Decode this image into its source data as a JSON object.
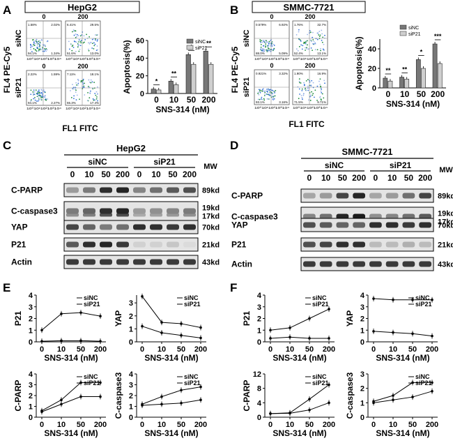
{
  "panels": {
    "A": {
      "letter": "A",
      "cell_line": "HepG2",
      "y_axis": "FL4 PE-Cy5",
      "x_axis": "FL1 FITC",
      "row_labels": [
        "siNC",
        "siP21"
      ],
      "col_labels": [
        "0",
        "200"
      ],
      "plot_ticks": "10⁰10¹10²10³10⁴",
      "quadrants": [
        [
          "1.58%",
          "2.02%",
          "94.1%",
          "1.34%"
        ],
        [
          "6.41%",
          "29.5%",
          "51.6%",
          "13.0%"
        ],
        [
          "2.22%",
          "1.59%",
          "94.1%",
          "2.27%"
        ],
        [
          "7.11%",
          "18.1%",
          "55.3%",
          "17.4%"
        ]
      ]
    },
    "B": {
      "letter": "B",
      "cell_line": "SMMC-7721",
      "y_axis": "FL4 PE-Cy5",
      "x_axis": "FL1 FITC",
      "row_labels": [
        "siNC",
        "siP21"
      ],
      "col_labels": [
        "0",
        "200"
      ],
      "plot_ticks": "10⁰10¹10²10³10⁴",
      "quadrants": [
        [
          "0.579%",
          "6.92%",
          "88.0%",
          "5.09%"
        ],
        [
          "1.76%",
          "32.7%",
          "52.4%",
          "13.1%"
        ],
        [
          "0.921%",
          "3.32%",
          "93.1%",
          "3.16%"
        ],
        [
          "1.90%",
          "16.9%",
          "71.5%",
          "9.71%"
        ]
      ]
    },
    "C": {
      "letter": "C",
      "cell_line": "HepG2",
      "group1": "siNC",
      "group2": "siP21",
      "doses": [
        "0",
        "10",
        "50",
        "200"
      ],
      "mw_header": "MW",
      "rows": [
        {
          "label": "C-PARP",
          "mw": "89kd"
        },
        {
          "label": "C-caspase3",
          "mw": "19kd",
          "mw2": "17kd"
        },
        {
          "label": "YAP",
          "mw": "70kd"
        },
        {
          "label": "P21",
          "mw": "21kd"
        },
        {
          "label": "Actin",
          "mw": "43kd"
        }
      ]
    },
    "D": {
      "letter": "D",
      "cell_line": "SMMC-7721",
      "group1": "siNC",
      "group2": "siP21",
      "doses": [
        "0",
        "10",
        "50",
        "200"
      ],
      "mw_header": "MW",
      "rows": [
        {
          "label": "C-PARP",
          "mw": "89kd"
        },
        {
          "label": "C-caspase3",
          "mw": "19kd",
          "mw2": "17kd"
        },
        {
          "label": "YAP",
          "mw": "70kd"
        },
        {
          "label": "P21",
          "mw": "21kd"
        },
        {
          "label": "Actin",
          "mw": "43kd"
        }
      ]
    },
    "E": {
      "letter": "E"
    },
    "F": {
      "letter": "F"
    }
  },
  "chart_data": [
    {
      "id": "A-bar",
      "type": "bar",
      "panel": "A",
      "ylabel": "Apoptosis(%)",
      "xlabel": "SNS-314 (nM)",
      "categories": [
        "0",
        "10",
        "50",
        "200"
      ],
      "yticks": [
        0,
        20,
        40,
        60
      ],
      "ylim": [
        0,
        60
      ],
      "series": [
        {
          "name": "siNC",
          "values": [
            5,
            14,
            44,
            48
          ]
        },
        {
          "name": "siP21",
          "values": [
            4,
            10,
            33,
            33
          ]
        }
      ],
      "significance": [
        "*",
        "**",
        "*",
        "**"
      ]
    },
    {
      "id": "B-bar",
      "type": "bar",
      "panel": "B",
      "ylabel": "Apoptosis(%)",
      "xlabel": "SNS-314 (nM)",
      "categories": [
        "0",
        "10",
        "50",
        "200"
      ],
      "yticks": [
        0,
        20,
        40
      ],
      "ylim": [
        0,
        50
      ],
      "series": [
        {
          "name": "siNC",
          "values": [
            10,
            11,
            29,
            45
          ]
        },
        {
          "name": "siP21",
          "values": [
            7,
            9,
            20,
            25
          ]
        }
      ],
      "significance": [
        "**",
        "**",
        "*",
        "***"
      ]
    },
    {
      "id": "E-P21",
      "type": "line",
      "panel": "E",
      "ylabel": "P21",
      "xlabel": "SNS-314 (nM)",
      "categories": [
        "0",
        "10",
        "50",
        "200"
      ],
      "yticks": [
        0,
        1,
        2,
        3,
        4
      ],
      "ylim": [
        0,
        4
      ],
      "series": [
        {
          "name": "siNC",
          "values": [
            1.0,
            2.4,
            2.5,
            2.2
          ]
        },
        {
          "name": "siP21",
          "values": [
            0.05,
            0.1,
            0.1,
            0.05
          ]
        }
      ]
    },
    {
      "id": "E-YAP",
      "type": "line",
      "panel": "E",
      "ylabel": "YAP",
      "xlabel": "SNS-314 (nM)",
      "categories": [
        "0",
        "10",
        "50",
        "200"
      ],
      "yticks": [
        0,
        1,
        2,
        3
      ],
      "ylim": [
        0,
        3.6
      ],
      "series": [
        {
          "name": "siNC",
          "values": [
            1.2,
            0.7,
            0.5,
            0.3
          ]
        },
        {
          "name": "siP21",
          "values": [
            3.5,
            1.5,
            1.4,
            1.1
          ]
        }
      ]
    },
    {
      "id": "E-CPARP",
      "type": "line",
      "panel": "E",
      "ylabel": "C-PARP",
      "xlabel": "SNS-314 (nM)",
      "categories": [
        "0",
        "10",
        "50",
        "200"
      ],
      "yticks": [
        0,
        1,
        2,
        3,
        4
      ],
      "ylim": [
        0,
        4
      ],
      "series": [
        {
          "name": "siNC",
          "values": [
            0.6,
            1.6,
            3.2,
            3.2
          ]
        },
        {
          "name": "siP21",
          "values": [
            0.5,
            1.2,
            1.9,
            1.9
          ]
        }
      ]
    },
    {
      "id": "E-Ccasp3",
      "type": "line",
      "panel": "E",
      "ylabel": "C-caspase3",
      "xlabel": "SNS-314 (nM)",
      "categories": [
        "0",
        "10",
        "50",
        "200"
      ],
      "yticks": [
        0,
        1,
        2,
        3,
        4
      ],
      "ylim": [
        0,
        4
      ],
      "series": [
        {
          "name": "siNC",
          "values": [
            1.2,
            1.9,
            2.5,
            2.8
          ]
        },
        {
          "name": "siP21",
          "values": [
            1.1,
            1.2,
            1.3,
            1.6
          ]
        }
      ]
    },
    {
      "id": "F-P21",
      "type": "line",
      "panel": "F",
      "ylabel": "P21",
      "xlabel": "SNS-314 (nM)",
      "categories": [
        "0",
        "10",
        "50",
        "200"
      ],
      "yticks": [
        0,
        1,
        2,
        3,
        4
      ],
      "ylim": [
        0,
        4
      ],
      "series": [
        {
          "name": "siNC",
          "values": [
            1.0,
            1.2,
            2.0,
            2.8
          ]
        },
        {
          "name": "siP21",
          "values": [
            0.3,
            0.4,
            0.3,
            0.3
          ]
        }
      ]
    },
    {
      "id": "F-YAP",
      "type": "line",
      "panel": "F",
      "ylabel": "YAP",
      "xlabel": "SNS-314 (nM)",
      "categories": [
        "0",
        "10",
        "50",
        "200"
      ],
      "yticks": [
        0,
        1,
        2,
        3,
        4
      ],
      "ylim": [
        0,
        4
      ],
      "series": [
        {
          "name": "siNC",
          "values": [
            3.7,
            3.6,
            3.6,
            3.6
          ]
        },
        {
          "name": "siP21",
          "values": [
            0.9,
            0.8,
            0.7,
            0.5
          ]
        }
      ]
    },
    {
      "id": "F-CPARP",
      "type": "line",
      "panel": "F",
      "ylabel": "C-PARP",
      "xlabel": "SNS-314 (nM)",
      "categories": [
        "0",
        "10",
        "50",
        "200"
      ],
      "yticks": [
        0,
        4,
        8,
        12
      ],
      "ylim": [
        0,
        12
      ],
      "series": [
        {
          "name": "siNC",
          "values": [
            1.0,
            1.2,
            5.0,
            9.0
          ]
        },
        {
          "name": "siP21",
          "values": [
            1.0,
            1.1,
            2.0,
            4.0
          ]
        }
      ]
    },
    {
      "id": "F-Ccasp3",
      "type": "line",
      "panel": "F",
      "ylabel": "C-caspase3",
      "xlabel": "SNS-314 (nM)",
      "categories": [
        "0",
        "10",
        "50",
        "200"
      ],
      "yticks": [
        0,
        1,
        2,
        3
      ],
      "ylim": [
        0,
        3
      ],
      "series": [
        {
          "name": "siNC",
          "values": [
            1.1,
            1.5,
            2.4,
            2.4
          ]
        },
        {
          "name": "siP21",
          "values": [
            1.0,
            1.2,
            1.4,
            1.8
          ]
        }
      ]
    }
  ]
}
